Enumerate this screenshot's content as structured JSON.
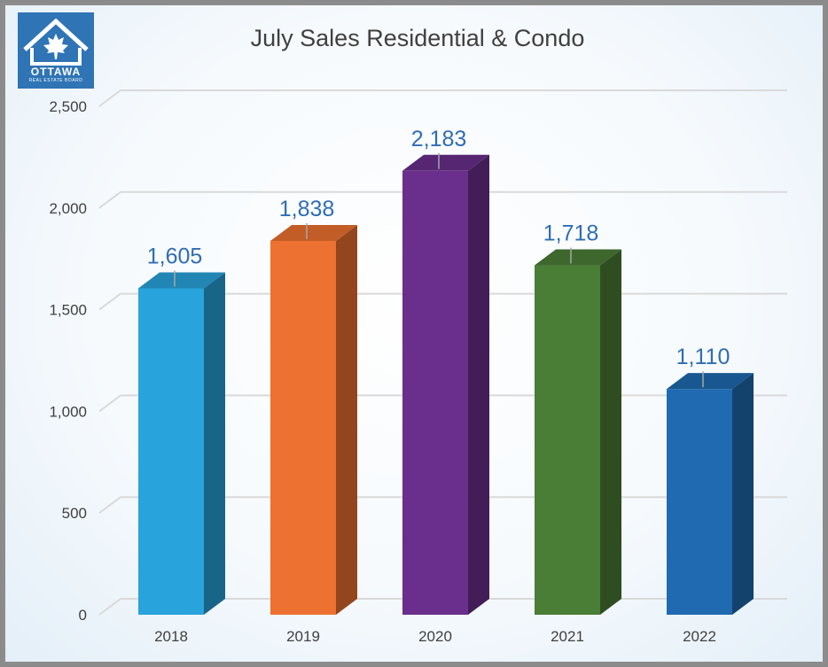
{
  "logo": {
    "word": "OTTAWA",
    "sub": "REAL ESTATE BOARD"
  },
  "chart_data": {
    "type": "bar",
    "title": "July Sales Residential & Condo",
    "xlabel": "",
    "ylabel": "",
    "categories": [
      "2018",
      "2019",
      "2020",
      "2021",
      "2022"
    ],
    "values": [
      1605,
      1838,
      2183,
      1718,
      1110
    ],
    "value_labels": [
      "1,605",
      "1,838",
      "2,183",
      "1,718",
      "1,110"
    ],
    "ylim": [
      0,
      2500
    ],
    "yticks": [
      0,
      500,
      1000,
      1500,
      2000,
      2500
    ],
    "ytick_labels": [
      "0",
      "500",
      "1,000",
      "1,500",
      "2,000",
      "2,500"
    ],
    "grid": true,
    "style": "3d-column",
    "colors": [
      "#29a3dc",
      "#ed7130",
      "#6a2e8c",
      "#4a7d36",
      "#1f6ab0"
    ]
  }
}
